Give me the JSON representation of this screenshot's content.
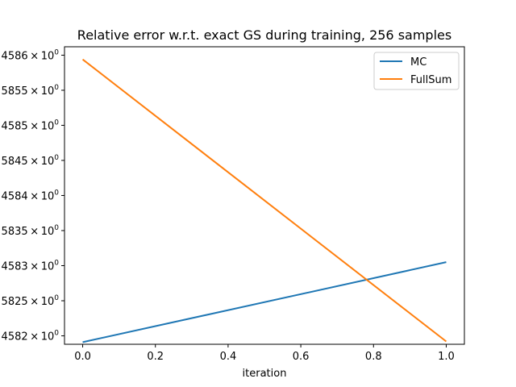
{
  "chart_data": {
    "type": "line",
    "title": "Relative error w.r.t. exact GS during training, 256 samples",
    "xlabel": "iteration",
    "ylabel": "",
    "y_scale": "log",
    "xlim": [
      -0.05,
      1.05
    ],
    "ylim": [
      4.58188,
      4.58612
    ],
    "x_ticks": [
      0.0,
      0.2,
      0.4,
      0.6,
      0.8,
      1.0
    ],
    "x_tick_labels": [
      "0.0",
      "0.2",
      "0.4",
      "0.6",
      "0.8",
      "1.0"
    ],
    "y_ticks": [
      4.582,
      4.5825,
      4.583,
      4.5835,
      4.584,
      4.5845,
      4.585,
      4.5855,
      4.586
    ],
    "y_tick_labels": [
      {
        "mantissa": "4582",
        "base": "10",
        "exp": "0"
      },
      {
        "mantissa": "5825",
        "base": "10",
        "exp": "0"
      },
      {
        "mantissa": "4583",
        "base": "10",
        "exp": "0"
      },
      {
        "mantissa": "5835",
        "base": "10",
        "exp": "0"
      },
      {
        "mantissa": "4584",
        "base": "10",
        "exp": "0"
      },
      {
        "mantissa": "5845",
        "base": "10",
        "exp": "0"
      },
      {
        "mantissa": "4585",
        "base": "10",
        "exp": "0"
      },
      {
        "mantissa": "5855",
        "base": "10",
        "exp": "0"
      },
      {
        "mantissa": "4586",
        "base": "10",
        "exp": "0"
      }
    ],
    "grid": false,
    "legend_position": "top-right",
    "series": [
      {
        "name": "MC",
        "color": "#1f77b4",
        "x": [
          0.0,
          1.0
        ],
        "values": [
          4.58191,
          4.58305
        ]
      },
      {
        "name": "FullSum",
        "color": "#ff7f0e",
        "x": [
          0.0,
          1.0
        ],
        "values": [
          4.58594,
          4.58192
        ]
      }
    ]
  }
}
